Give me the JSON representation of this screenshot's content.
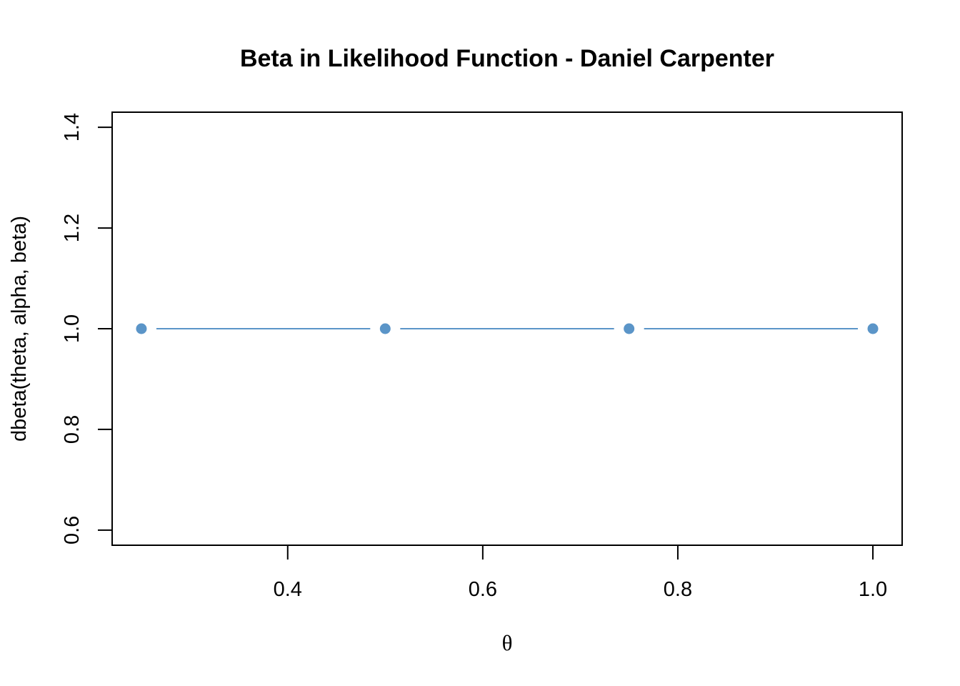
{
  "chart_data": {
    "type": "line",
    "title": "Beta in Likelihood Function - Daniel Carpenter",
    "xlabel": "θ",
    "ylabel": "dbeta(theta, alpha, beta)",
    "x": [
      0.25,
      0.5,
      0.75,
      1.0
    ],
    "series": [
      {
        "values": [
          1.0,
          1.0,
          1.0,
          1.0
        ]
      }
    ],
    "xlim": [
      0.22,
      1.03
    ],
    "ylim": [
      0.57,
      1.43
    ],
    "xticks": [
      0.4,
      0.6,
      0.8,
      1.0
    ],
    "xtick_labels": [
      "0.4",
      "0.6",
      "0.8",
      "1.0"
    ],
    "yticks": [
      0.6,
      0.8,
      1.0,
      1.2,
      1.4
    ],
    "ytick_labels": [
      "0.6",
      "0.8",
      "1.0",
      "1.2",
      "1.4"
    ],
    "grid": false,
    "markers": true,
    "color": "#5b95c8"
  }
}
